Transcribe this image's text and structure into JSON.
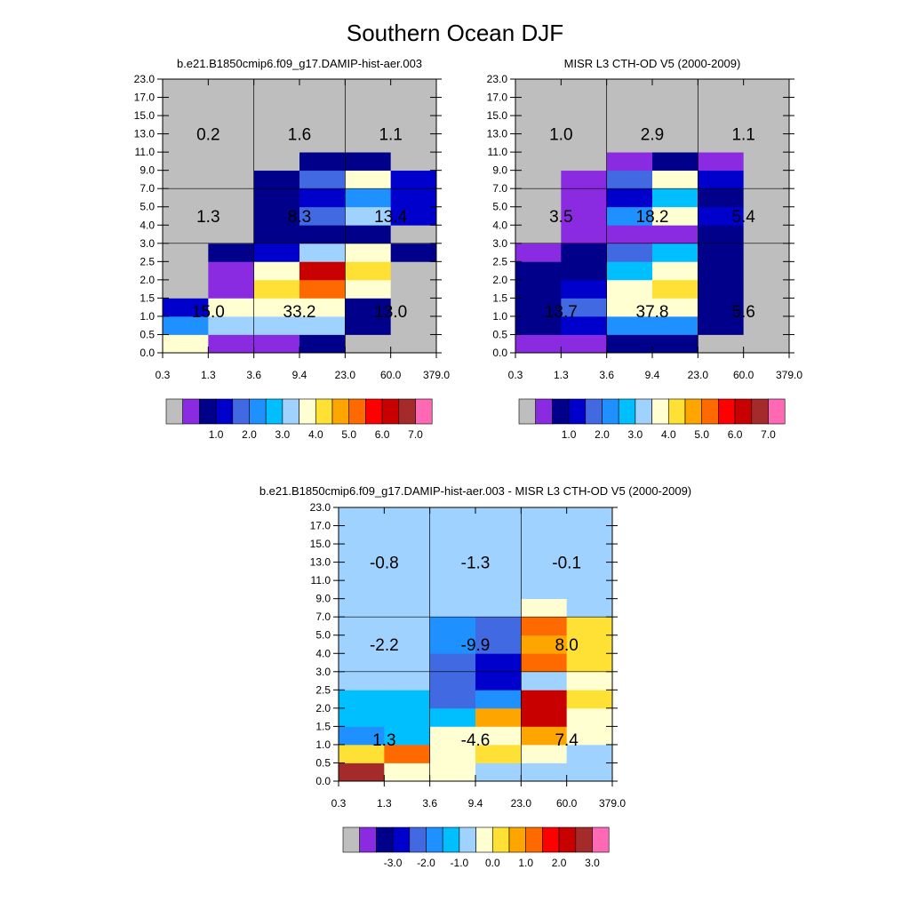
{
  "title": "Southern Ocean DJF",
  "chart_data": [
    {
      "type": "heatmap",
      "title": "b.e21.B1850cmip6.f09_g17.DAMIP-hist-aer.003",
      "x_tick_labels": [
        "0.3",
        "1.3",
        "3.6",
        "9.4",
        "23.0",
        "60.0",
        "379.0"
      ],
      "y_tick_labels": [
        "0.0",
        "0.5",
        "1.0",
        "1.5",
        "2.0",
        "2.5",
        "3.0",
        "4.0",
        "5.0",
        "7.0",
        "9.0",
        "11.0",
        "13.0",
        "15.0",
        "17.0",
        "23.0"
      ],
      "cell_color_index": [
        [
          8,
          1,
          1,
          2,
          0,
          0
        ],
        [
          5,
          7,
          7,
          7,
          2,
          0
        ],
        [
          3,
          8,
          8,
          8,
          2,
          0
        ],
        [
          0,
          1,
          9,
          11,
          8,
          0
        ],
        [
          0,
          1,
          8,
          13,
          9,
          0
        ],
        [
          0,
          2,
          3,
          7,
          8,
          2
        ],
        [
          0,
          0,
          2,
          2,
          2,
          0
        ],
        [
          0,
          0,
          2,
          4,
          7,
          3
        ],
        [
          0,
          0,
          2,
          3,
          5,
          3
        ],
        [
          0,
          0,
          2,
          4,
          8,
          3
        ],
        [
          0,
          0,
          0,
          2,
          2,
          0
        ],
        [
          0,
          0,
          0,
          0,
          0,
          0
        ],
        [
          0,
          0,
          0,
          0,
          0,
          0
        ],
        [
          0,
          0,
          0,
          0,
          0,
          0
        ],
        [
          0,
          0,
          0,
          0,
          0,
          0
        ]
      ],
      "region_totals": [
        {
          "x": "low",
          "y": "high",
          "value": "0.2"
        },
        {
          "x": "mid",
          "y": "high",
          "value": "1.6"
        },
        {
          "x": "high",
          "y": "high",
          "value": "1.1"
        },
        {
          "x": "low",
          "y": "mid",
          "value": "1.3"
        },
        {
          "x": "mid",
          "y": "mid",
          "value": "8.3"
        },
        {
          "x": "high",
          "y": "mid",
          "value": "13.4"
        },
        {
          "x": "low",
          "y": "low",
          "value": "15.0"
        },
        {
          "x": "mid",
          "y": "low",
          "value": "33.2"
        },
        {
          "x": "high",
          "y": "low",
          "value": "13.0"
        }
      ],
      "colorbar": {
        "colors": [
          "#bebebe",
          "#8a2be2",
          "#00008b",
          "#0000cd",
          "#4169e1",
          "#1e90ff",
          "#00bfff",
          "#a0d2ff",
          "#ffffd1",
          "#ffe135",
          "#ffa500",
          "#ff6a00",
          "#ff0000",
          "#c80000",
          "#a52a2a",
          "#ff69b4"
        ],
        "labels": [
          "1.0",
          "2.0",
          "3.0",
          "4.0",
          "5.0",
          "6.0",
          "7.0"
        ]
      }
    },
    {
      "type": "heatmap",
      "title": "MISR L3 CTH-OD V5 (2000-2009)",
      "x_tick_labels": [
        "0.3",
        "1.3",
        "3.6",
        "9.4",
        "23.0",
        "60.0",
        "379.0"
      ],
      "y_tick_labels": [
        "0.0",
        "0.5",
        "1.0",
        "1.5",
        "2.0",
        "2.5",
        "3.0",
        "4.0",
        "5.0",
        "7.0",
        "9.0",
        "11.0",
        "13.0",
        "15.0",
        "17.0",
        "23.0"
      ],
      "cell_color_index": [
        [
          1,
          1,
          2,
          2,
          0,
          0
        ],
        [
          2,
          3,
          5,
          5,
          2,
          0
        ],
        [
          2,
          4,
          8,
          8,
          2,
          0
        ],
        [
          2,
          3,
          8,
          9,
          2,
          0
        ],
        [
          2,
          2,
          6,
          8,
          2,
          0
        ],
        [
          1,
          2,
          4,
          6,
          2,
          0
        ],
        [
          0,
          1,
          1,
          1,
          2,
          0
        ],
        [
          0,
          1,
          5,
          8,
          3,
          0
        ],
        [
          0,
          1,
          3,
          6,
          2,
          0
        ],
        [
          0,
          1,
          4,
          8,
          3,
          0
        ],
        [
          0,
          0,
          1,
          2,
          1,
          0
        ],
        [
          0,
          0,
          0,
          0,
          0,
          0
        ],
        [
          0,
          0,
          0,
          0,
          0,
          0
        ],
        [
          0,
          0,
          0,
          0,
          0,
          0
        ],
        [
          0,
          0,
          0,
          0,
          0,
          0
        ]
      ],
      "region_totals": [
        {
          "x": "low",
          "y": "high",
          "value": "1.0"
        },
        {
          "x": "mid",
          "y": "high",
          "value": "2.9"
        },
        {
          "x": "high",
          "y": "high",
          "value": "1.1"
        },
        {
          "x": "low",
          "y": "mid",
          "value": "3.5"
        },
        {
          "x": "mid",
          "y": "mid",
          "value": "18.2"
        },
        {
          "x": "high",
          "y": "mid",
          "value": "5.4"
        },
        {
          "x": "low",
          "y": "low",
          "value": "13.7"
        },
        {
          "x": "mid",
          "y": "low",
          "value": "37.8"
        },
        {
          "x": "high",
          "y": "low",
          "value": "5.6"
        }
      ],
      "colorbar": {
        "colors": [
          "#bebebe",
          "#8a2be2",
          "#00008b",
          "#0000cd",
          "#4169e1",
          "#1e90ff",
          "#00bfff",
          "#a0d2ff",
          "#ffffd1",
          "#ffe135",
          "#ffa500",
          "#ff6a00",
          "#ff0000",
          "#c80000",
          "#a52a2a",
          "#ff69b4"
        ],
        "labels": [
          "1.0",
          "2.0",
          "3.0",
          "4.0",
          "5.0",
          "6.0",
          "7.0"
        ]
      }
    },
    {
      "type": "heatmap",
      "title": "b.e21.B1850cmip6.f09_g17.DAMIP-hist-aer.003 - MISR L3 CTH-OD V5 (2000-2009)",
      "x_tick_labels": [
        "0.3",
        "1.3",
        "3.6",
        "9.4",
        "23.0",
        "60.0",
        "379.0"
      ],
      "y_tick_labels": [
        "0.0",
        "0.5",
        "1.0",
        "1.5",
        "2.0",
        "2.5",
        "3.0",
        "4.0",
        "5.0",
        "7.0",
        "9.0",
        "11.0",
        "13.0",
        "15.0",
        "17.0",
        "23.0"
      ],
      "cell_color_index": [
        [
          14,
          8,
          8,
          7,
          7,
          7
        ],
        [
          9,
          11,
          8,
          9,
          8,
          7
        ],
        [
          5,
          6,
          8,
          8,
          10,
          8
        ],
        [
          6,
          6,
          6,
          10,
          13,
          8
        ],
        [
          6,
          6,
          4,
          5,
          13,
          9
        ],
        [
          7,
          7,
          4,
          3,
          7,
          8
        ],
        [
          7,
          7,
          4,
          3,
          11,
          9
        ],
        [
          7,
          7,
          5,
          4,
          10,
          9
        ],
        [
          7,
          7,
          5,
          4,
          11,
          9
        ],
        [
          7,
          7,
          7,
          7,
          8,
          7
        ],
        [
          7,
          7,
          7,
          7,
          7,
          7
        ],
        [
          7,
          7,
          7,
          7,
          7,
          7
        ],
        [
          7,
          7,
          7,
          7,
          7,
          7
        ],
        [
          7,
          7,
          7,
          7,
          7,
          7
        ],
        [
          7,
          7,
          7,
          7,
          7,
          7
        ]
      ],
      "region_totals": [
        {
          "x": "low",
          "y": "high",
          "value": "-0.8"
        },
        {
          "x": "mid",
          "y": "high",
          "value": "-1.3"
        },
        {
          "x": "high",
          "y": "high",
          "value": "-0.1"
        },
        {
          "x": "low",
          "y": "mid",
          "value": "-2.2"
        },
        {
          "x": "mid",
          "y": "mid",
          "value": "-9.9"
        },
        {
          "x": "high",
          "y": "mid",
          "value": "8.0"
        },
        {
          "x": "low",
          "y": "low",
          "value": "1.3"
        },
        {
          "x": "mid",
          "y": "low",
          "value": "-4.6"
        },
        {
          "x": "high",
          "y": "low",
          "value": "7.4"
        }
      ],
      "colorbar": {
        "colors": [
          "#bebebe",
          "#8a2be2",
          "#00008b",
          "#0000cd",
          "#4169e1",
          "#1e90ff",
          "#00bfff",
          "#a0d2ff",
          "#ffffd1",
          "#ffe135",
          "#ffa500",
          "#ff6a00",
          "#ff0000",
          "#c80000",
          "#a52a2a",
          "#ff69b4"
        ],
        "labels": [
          "-3.0",
          "-2.0",
          "-1.0",
          "0.0",
          "1.0",
          "2.0",
          "3.0"
        ]
      }
    }
  ]
}
